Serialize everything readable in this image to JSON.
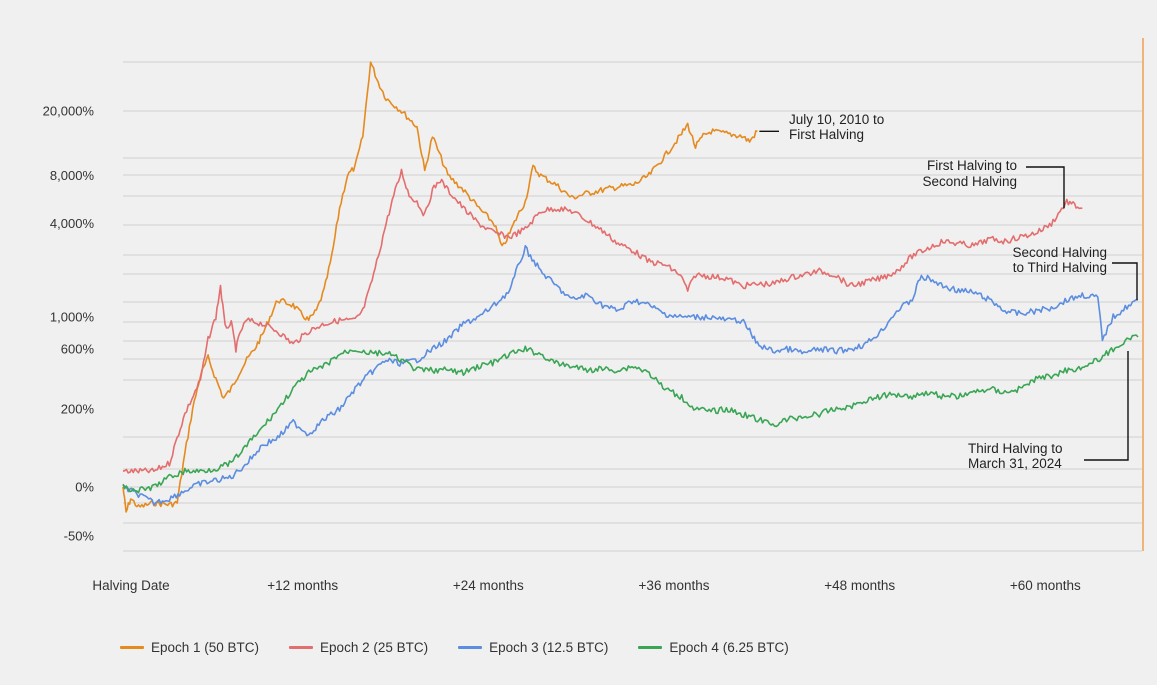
{
  "chart_data": {
    "type": "line",
    "title": "",
    "xlabel": "",
    "ylabel": "",
    "x_ticks": [
      "Halving Date",
      "+12 months",
      "+24 months",
      "+36 months",
      "+48 months",
      "+60 months"
    ],
    "x_tick_months": [
      0,
      12,
      24,
      36,
      48,
      60
    ],
    "xlim_months": [
      0,
      65.6
    ],
    "y_ticks": [
      {
        "label": "20,000%",
        "value": 20000
      },
      {
        "label": "8,000%",
        "value": 8000
      },
      {
        "label": "4,000%",
        "value": 4000
      },
      {
        "label": "1,000%",
        "value": 1000
      },
      {
        "label": "600%",
        "value": 600
      },
      {
        "label": "200%",
        "value": 200
      },
      {
        "label": "0%",
        "value": 0
      },
      {
        "label": "-50%",
        "value": -50
      }
    ],
    "y_scale": "log (of 1 + return)",
    "ylim": [
      -60,
      50000
    ],
    "grid": true,
    "legend_position": "bottom",
    "series": [
      {
        "name": "Epoch 1 (50 BTC)",
        "color": "#e58a1f",
        "points": [
          [
            0,
            0
          ],
          [
            0.2,
            -30
          ],
          [
            0.5,
            -15
          ],
          [
            1,
            -25
          ],
          [
            2,
            -20
          ],
          [
            3,
            -22
          ],
          [
            3.5,
            -20
          ],
          [
            4,
            60
          ],
          [
            4.5,
            200
          ],
          [
            5,
            380
          ],
          [
            5.5,
            520
          ],
          [
            6,
            360
          ],
          [
            6.5,
            250
          ],
          [
            7,
            300
          ],
          [
            7.5,
            400
          ],
          [
            8,
            500
          ],
          [
            8.5,
            600
          ],
          [
            9,
            750
          ],
          [
            9.5,
            1000
          ],
          [
            10,
            1300
          ],
          [
            11,
            1200
          ],
          [
            11.5,
            1050
          ],
          [
            12,
            950
          ],
          [
            12.5,
            1100
          ],
          [
            13,
            1500
          ],
          [
            13.5,
            2500
          ],
          [
            14,
            5000
          ],
          [
            14.5,
            8000
          ],
          [
            15,
            9000
          ],
          [
            15.5,
            14000
          ],
          [
            16,
            40000
          ],
          [
            16.5,
            30000
          ],
          [
            17,
            24000
          ],
          [
            18,
            20000
          ],
          [
            19,
            16000
          ],
          [
            19.5,
            8500
          ],
          [
            20,
            14000
          ],
          [
            21,
            8000
          ],
          [
            22,
            6500
          ],
          [
            23,
            5000
          ],
          [
            24,
            4000
          ],
          [
            24.5,
            2800
          ],
          [
            25,
            3500
          ],
          [
            25.5,
            4500
          ],
          [
            26,
            5500
          ],
          [
            26.5,
            9000
          ],
          [
            27,
            8000
          ],
          [
            28,
            7000
          ],
          [
            29,
            5800
          ],
          [
            30,
            6200
          ],
          [
            31,
            6500
          ],
          [
            32,
            6800
          ],
          [
            33,
            7000
          ],
          [
            34,
            8000
          ],
          [
            35,
            10500
          ],
          [
            36,
            14000
          ],
          [
            36.5,
            16500
          ],
          [
            37,
            12000
          ],
          [
            37.5,
            14000
          ],
          [
            38,
            15000
          ],
          [
            39,
            14500
          ],
          [
            40,
            14000
          ],
          [
            40.5,
            13000
          ],
          [
            41,
            15000
          ]
        ]
      },
      {
        "name": "Epoch 2 (25 BTC)",
        "color": "#e46d6d",
        "points": [
          [
            0,
            25
          ],
          [
            1,
            25
          ],
          [
            2,
            25
          ],
          [
            3,
            40
          ],
          [
            3.5,
            100
          ],
          [
            4,
            180
          ],
          [
            5,
            350
          ],
          [
            5.5,
            700
          ],
          [
            6,
            1000
          ],
          [
            6.3,
            1600
          ],
          [
            6.6,
            850
          ],
          [
            7,
            900
          ],
          [
            7.3,
            600
          ],
          [
            7.6,
            800
          ],
          [
            8,
            950
          ],
          [
            9,
            900
          ],
          [
            10,
            800
          ],
          [
            11,
            650
          ],
          [
            12,
            800
          ],
          [
            13,
            900
          ],
          [
            14,
            950
          ],
          [
            15,
            950
          ],
          [
            15.5,
            1100
          ],
          [
            16,
            1600
          ],
          [
            16.5,
            2500
          ],
          [
            17,
            4000
          ],
          [
            17.5,
            6000
          ],
          [
            18,
            8500
          ],
          [
            18.5,
            6000
          ],
          [
            19,
            5500
          ],
          [
            19.5,
            4500
          ],
          [
            20,
            6500
          ],
          [
            20.5,
            7500
          ],
          [
            21,
            6500
          ],
          [
            22,
            5000
          ],
          [
            23,
            4000
          ],
          [
            24,
            3500
          ],
          [
            25,
            3300
          ],
          [
            26,
            3700
          ],
          [
            27,
            4800
          ],
          [
            28,
            5000
          ],
          [
            29,
            4800
          ],
          [
            30,
            4200
          ],
          [
            31,
            3600
          ],
          [
            32,
            3000
          ],
          [
            33,
            2700
          ],
          [
            34,
            2300
          ],
          [
            35,
            2200
          ],
          [
            36,
            1900
          ],
          [
            36.5,
            1500
          ],
          [
            37,
            1900
          ],
          [
            38,
            1850
          ],
          [
            39,
            1800
          ],
          [
            40,
            1600
          ],
          [
            41,
            1650
          ],
          [
            42,
            1650
          ],
          [
            43,
            1800
          ],
          [
            44,
            1900
          ],
          [
            45,
            2000
          ],
          [
            46,
            1900
          ],
          [
            47,
            1600
          ],
          [
            48,
            1700
          ],
          [
            49,
            1800
          ],
          [
            50,
            2000
          ],
          [
            51,
            2500
          ],
          [
            52,
            2800
          ],
          [
            53,
            3100
          ],
          [
            54,
            3000
          ],
          [
            55,
            2900
          ],
          [
            56,
            3200
          ],
          [
            57,
            3100
          ],
          [
            58,
            3300
          ],
          [
            59,
            3500
          ],
          [
            60,
            4000
          ],
          [
            61,
            5500
          ],
          [
            61.5,
            5200
          ],
          [
            62,
            5000
          ]
        ]
      },
      {
        "name": "Epoch 3 (12.5 BTC)",
        "color": "#5b8de0",
        "points": [
          [
            0,
            0
          ],
          [
            1,
            -10
          ],
          [
            2,
            -20
          ],
          [
            3,
            -15
          ],
          [
            4,
            -5
          ],
          [
            5,
            5
          ],
          [
            6,
            10
          ],
          [
            7,
            15
          ],
          [
            8,
            40
          ],
          [
            9,
            80
          ],
          [
            10,
            100
          ],
          [
            11,
            150
          ],
          [
            12,
            110
          ],
          [
            13,
            160
          ],
          [
            14,
            200
          ],
          [
            15,
            300
          ],
          [
            16,
            400
          ],
          [
            17,
            500
          ],
          [
            18,
            470
          ],
          [
            19,
            500
          ],
          [
            20,
            600
          ],
          [
            21,
            700
          ],
          [
            22,
            900
          ],
          [
            23,
            1000
          ],
          [
            24,
            1200
          ],
          [
            25,
            1500
          ],
          [
            25.5,
            2100
          ],
          [
            26,
            2800
          ],
          [
            27,
            2000
          ],
          [
            28,
            1600
          ],
          [
            29,
            1300
          ],
          [
            30,
            1400
          ],
          [
            31,
            1200
          ],
          [
            32,
            1100
          ],
          [
            33,
            1300
          ],
          [
            34,
            1200
          ],
          [
            35,
            1050
          ],
          [
            36,
            1000
          ],
          [
            37,
            1000
          ],
          [
            38,
            1000
          ],
          [
            39,
            950
          ],
          [
            40,
            950
          ],
          [
            40.5,
            800
          ],
          [
            41,
            650
          ],
          [
            42,
            580
          ],
          [
            43,
            600
          ],
          [
            44,
            560
          ],
          [
            45,
            600
          ],
          [
            46,
            580
          ],
          [
            47,
            600
          ],
          [
            48,
            650
          ],
          [
            49,
            800
          ],
          [
            50,
            1100
          ],
          [
            51,
            1300
          ],
          [
            51.5,
            1800
          ],
          [
            52,
            1800
          ],
          [
            53,
            1600
          ],
          [
            54,
            1500
          ],
          [
            55,
            1450
          ],
          [
            56,
            1300
          ],
          [
            57,
            1100
          ],
          [
            58,
            1050
          ],
          [
            59,
            1100
          ],
          [
            60,
            1150
          ],
          [
            61,
            1300
          ],
          [
            62,
            1400
          ],
          [
            63,
            1350
          ],
          [
            63.3,
            700
          ],
          [
            64,
            1000
          ],
          [
            65,
            1200
          ],
          [
            65.6,
            1300
          ]
        ]
      },
      {
        "name": "Epoch 4 (6.25 BTC)",
        "color": "#3aa655",
        "points": [
          [
            0,
            0
          ],
          [
            1,
            -5
          ],
          [
            2,
            0
          ],
          [
            3,
            15
          ],
          [
            4,
            25
          ],
          [
            5,
            25
          ],
          [
            6,
            30
          ],
          [
            7,
            40
          ],
          [
            8,
            80
          ],
          [
            9,
            130
          ],
          [
            10,
            200
          ],
          [
            11,
            300
          ],
          [
            12,
            400
          ],
          [
            13,
            450
          ],
          [
            14,
            550
          ],
          [
            15,
            600
          ],
          [
            16,
            560
          ],
          [
            17,
            560
          ],
          [
            18,
            500
          ],
          [
            19,
            420
          ],
          [
            20,
            420
          ],
          [
            21,
            420
          ],
          [
            22,
            400
          ],
          [
            23,
            450
          ],
          [
            24,
            480
          ],
          [
            25,
            550
          ],
          [
            26,
            600
          ],
          [
            27,
            550
          ],
          [
            28,
            470
          ],
          [
            29,
            450
          ],
          [
            30,
            420
          ],
          [
            31,
            430
          ],
          [
            32,
            420
          ],
          [
            33,
            450
          ],
          [
            34,
            400
          ],
          [
            35,
            300
          ],
          [
            36,
            260
          ],
          [
            37,
            200
          ],
          [
            38,
            190
          ],
          [
            39,
            200
          ],
          [
            40,
            180
          ],
          [
            41,
            160
          ],
          [
            42,
            140
          ],
          [
            43,
            160
          ],
          [
            44,
            170
          ],
          [
            45,
            180
          ],
          [
            46,
            200
          ],
          [
            47,
            210
          ],
          [
            48,
            240
          ],
          [
            49,
            260
          ],
          [
            50,
            270
          ],
          [
            51,
            260
          ],
          [
            52,
            280
          ],
          [
            53,
            260
          ],
          [
            54,
            260
          ],
          [
            55,
            280
          ],
          [
            56,
            300
          ],
          [
            57,
            280
          ],
          [
            58,
            300
          ],
          [
            59,
            360
          ],
          [
            60,
            380
          ],
          [
            61,
            420
          ],
          [
            62,
            440
          ],
          [
            63,
            500
          ],
          [
            64,
            600
          ],
          [
            65,
            700
          ],
          [
            65.6,
            730
          ]
        ]
      }
    ],
    "annotations": [
      {
        "lines": [
          "July 10, 2010 to",
          "First Halving"
        ],
        "series": "Epoch 1 (50 BTC)"
      },
      {
        "lines": [
          "First Halving to",
          "Second Halving"
        ],
        "series": "Epoch 2 (25 BTC)"
      },
      {
        "lines": [
          "Second Halving",
          "to Third Halving"
        ],
        "series": "Epoch 3 (12.5 BTC)"
      },
      {
        "lines": [
          "Third Halving to",
          "March 31, 2024"
        ],
        "series": "Epoch 4 (6.25 BTC)"
      }
    ]
  },
  "legend": [
    {
      "label": "Epoch 1 (50 BTC)",
      "color": "#e58a1f"
    },
    {
      "label": "Epoch 2 (25 BTC)",
      "color": "#e46d6d"
    },
    {
      "label": "Epoch 3 (12.5 BTC)",
      "color": "#5b8de0"
    },
    {
      "label": "Epoch 4 (6.25 BTC)",
      "color": "#3aa655"
    }
  ],
  "colors": {
    "background": "#f0f0f0",
    "grid": "#d0d0d0",
    "accent_rule": "#f0a050"
  }
}
